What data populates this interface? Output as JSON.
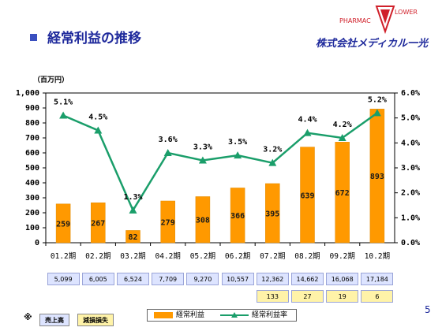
{
  "header": {
    "title": "経常利益の推移",
    "company": "株式会社メディカル一光",
    "logo": {
      "text_left": "PHARMAC",
      "text_right": "LOWER"
    }
  },
  "chart_data": {
    "type": "bar+line",
    "unit_label": "（百万円）",
    "categories": [
      "01.2期",
      "02.2期",
      "03.2期",
      "04.2期",
      "05.2期",
      "06.2期",
      "07.2期",
      "08.2期",
      "09.2期",
      "10.2期"
    ],
    "series": [
      {
        "name": "経常利益",
        "type": "bar",
        "axis": "left",
        "color": "#ff9900",
        "values": [
          259,
          267,
          82,
          279,
          308,
          366,
          395,
          639,
          672,
          893
        ]
      },
      {
        "name": "経常利益率",
        "type": "line",
        "axis": "right",
        "color": "#1a9e6a",
        "values": [
          5.1,
          4.5,
          1.3,
          3.6,
          3.3,
          3.5,
          3.2,
          4.4,
          4.2,
          5.2
        ],
        "labels": [
          "5.1%",
          "4.5%",
          "1.3%",
          "3.6%",
          "3.3%",
          "3.5%",
          "3.2%",
          "4.4%",
          "4.2%",
          "5.2%"
        ]
      }
    ],
    "y_left": {
      "min": 0,
      "max": 1000,
      "ticks": [
        "0",
        "100",
        "200",
        "300",
        "400",
        "500",
        "600",
        "700",
        "800",
        "900",
        "1,000"
      ]
    },
    "y_right": {
      "min": 0,
      "max": 6.0,
      "ticks": [
        "0.0%",
        "1.0%",
        "2.0%",
        "3.0%",
        "4.0%",
        "5.0%",
        "6.0%"
      ]
    },
    "sales_row": [
      "5,099",
      "6,005",
      "6,524",
      "7,709",
      "9,270",
      "10,557",
      "12,362",
      "14,662",
      "16,068",
      "17,184"
    ],
    "loss_row": {
      "categories": [
        "07.2期",
        "08.2期",
        "09.2期",
        "10.2期"
      ],
      "values": [
        "133",
        "27",
        "19",
        "6"
      ]
    }
  },
  "notes": {
    "mark": "※",
    "sales_label": "売上高",
    "loss_label": "減損損失"
  },
  "legend": {
    "bar": "経常利益",
    "line": "経常利益率"
  },
  "page_number": "5"
}
